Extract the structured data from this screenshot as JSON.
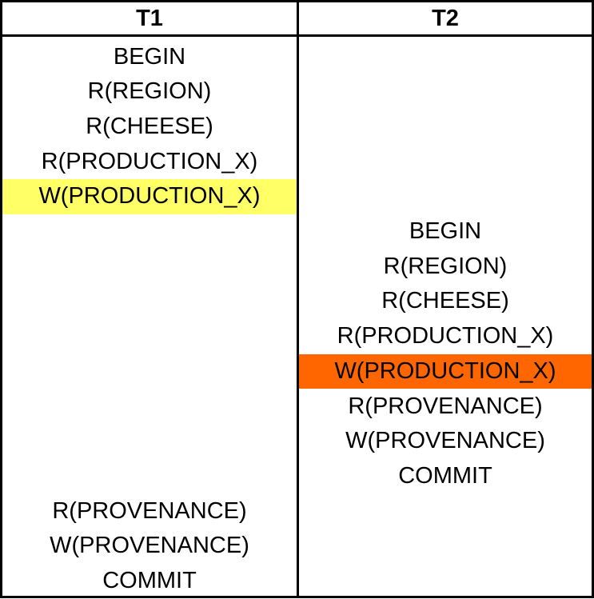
{
  "headers": [
    "T1",
    "T2"
  ],
  "colors": {
    "t1_conflict_write": "#ffff66",
    "t2_conflict_write": "#ff6600"
  },
  "schedule": [
    {
      "t1": "BEGIN",
      "t2": ""
    },
    {
      "t1": "R(REGION)",
      "t2": ""
    },
    {
      "t1": "R(CHEESE)",
      "t2": ""
    },
    {
      "t1": "R(PRODUCTION_X)",
      "t2": ""
    },
    {
      "t1": "W(PRODUCTION_X)",
      "t2": "",
      "t1_highlight": "yellow"
    },
    {
      "t1": "",
      "t2": "BEGIN"
    },
    {
      "t1": "",
      "t2": "R(REGION)"
    },
    {
      "t1": "",
      "t2": "R(CHEESE)"
    },
    {
      "t1": "",
      "t2": "R(PRODUCTION_X)"
    },
    {
      "t1": "",
      "t2": "W(PRODUCTION_X)",
      "t2_highlight": "orange"
    },
    {
      "t1": "",
      "t2": "R(PROVENANCE)"
    },
    {
      "t1": "",
      "t2": "W(PROVENANCE)"
    },
    {
      "t1": "",
      "t2": "COMMIT"
    },
    {
      "t1": "R(PROVENANCE)",
      "t2": ""
    },
    {
      "t1": "W(PROVENANCE)",
      "t2": ""
    },
    {
      "t1": "COMMIT",
      "t2": ""
    }
  ]
}
